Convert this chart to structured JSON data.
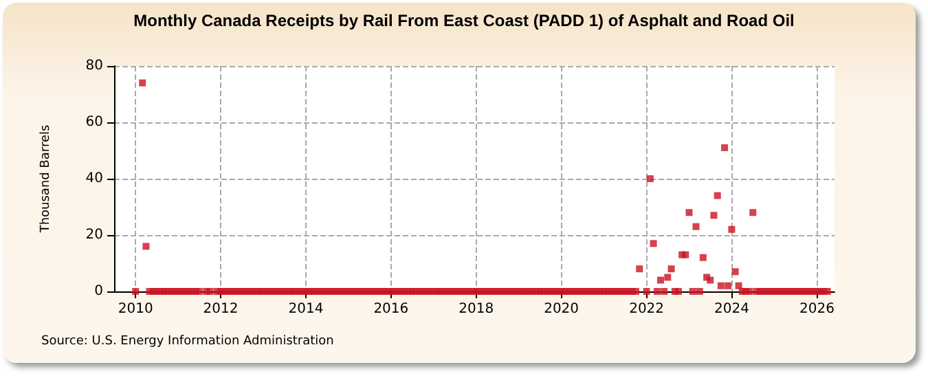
{
  "chart_data": {
    "type": "scatter",
    "title": "Monthly Canada Receipts by Rail From East Coast (PADD 1) of Asphalt and Road Oil",
    "ylabel": "Thousand Barrels",
    "annotations": [
      "Source: U.S. Energy Information Administration"
    ],
    "x": [
      "2010-01",
      "2010-03",
      "2010-04",
      "2010-05",
      "2010-06",
      "2010-07",
      "2010-08",
      "2010-09",
      "2010-10",
      "2010-11",
      "2010-12",
      "2011-01",
      "2011-02",
      "2011-03",
      "2011-04",
      "2011-05",
      "2011-06",
      "2011-07",
      "2011-09",
      "2011-10",
      "2011-12",
      "2012-01",
      "2012-02",
      "2012-03",
      "2012-04",
      "2012-05",
      "2012-06",
      "2012-07",
      "2012-08",
      "2012-09",
      "2012-10",
      "2012-11",
      "2012-12",
      "2013-01",
      "2013-02",
      "2013-03",
      "2013-04",
      "2013-05",
      "2013-06",
      "2013-07",
      "2013-08",
      "2013-09",
      "2013-10",
      "2013-11",
      "2013-12",
      "2014-01",
      "2014-02",
      "2014-03",
      "2014-04",
      "2014-05",
      "2014-06",
      "2014-07",
      "2014-08",
      "2014-09",
      "2014-10",
      "2014-11",
      "2014-12",
      "2015-01",
      "2015-02",
      "2015-03",
      "2015-04",
      "2015-05",
      "2015-06",
      "2015-07",
      "2015-08",
      "2015-09",
      "2015-10",
      "2015-11",
      "2015-12",
      "2016-01",
      "2016-02",
      "2016-03",
      "2016-04",
      "2016-05",
      "2016-06",
      "2016-07",
      "2016-08",
      "2016-09",
      "2016-10",
      "2016-11",
      "2016-12",
      "2017-01",
      "2017-02",
      "2017-03",
      "2017-04",
      "2017-05",
      "2017-06",
      "2017-07",
      "2017-08",
      "2017-09",
      "2017-10",
      "2017-11",
      "2017-12",
      "2018-01",
      "2018-02",
      "2018-03",
      "2018-04",
      "2018-05",
      "2018-06",
      "2018-07",
      "2018-08",
      "2018-09",
      "2018-10",
      "2018-11",
      "2018-12",
      "2019-01",
      "2019-02",
      "2019-03",
      "2019-04",
      "2019-05",
      "2019-06",
      "2019-07",
      "2019-08",
      "2019-09",
      "2019-10",
      "2019-11",
      "2019-12",
      "2020-01",
      "2020-02",
      "2020-03",
      "2020-04",
      "2020-05",
      "2020-06",
      "2020-07",
      "2020-08",
      "2020-09",
      "2020-10",
      "2020-11",
      "2020-12",
      "2021-01",
      "2021-02",
      "2021-03",
      "2021-04",
      "2021-05",
      "2021-06",
      "2021-07",
      "2021-08",
      "2021-09",
      "2021-10",
      "2021-11",
      "2022-01",
      "2022-02",
      "2022-03",
      "2022-04",
      "2022-05",
      "2022-06",
      "2022-07",
      "2022-08",
      "2022-09",
      "2022-10",
      "2022-11",
      "2022-12",
      "2023-01",
      "2023-02",
      "2023-03",
      "2023-04",
      "2023-05",
      "2023-06",
      "2023-07",
      "2023-08",
      "2023-09",
      "2023-10",
      "2023-11",
      "2023-12",
      "2024-01",
      "2024-02",
      "2024-03",
      "2024-04",
      "2024-05",
      "2024-06",
      "2024-07",
      "2024-08",
      "2024-09",
      "2024-10",
      "2024-11",
      "2024-12",
      "2025-01",
      "2025-02",
      "2025-03",
      "2025-04",
      "2025-05",
      "2025-06",
      "2025-07",
      "2025-08",
      "2025-09",
      "2025-10",
      "2025-11",
      "2025-12",
      "2026-01",
      "2026-02",
      "2026-03",
      "2026-04"
    ],
    "series": [
      {
        "color": "#cc1122",
        "values": [
          0,
          74,
          16,
          0,
          0,
          0,
          0,
          0,
          0,
          0,
          0,
          0,
          0,
          0,
          0,
          0,
          0,
          0,
          0,
          0,
          0,
          0,
          0,
          0,
          0,
          0,
          0,
          0,
          0,
          0,
          0,
          0,
          0,
          0,
          0,
          0,
          0,
          0,
          0,
          0,
          0,
          0,
          0,
          0,
          0,
          0,
          0,
          0,
          0,
          0,
          0,
          0,
          0,
          0,
          0,
          0,
          0,
          0,
          0,
          0,
          0,
          0,
          0,
          0,
          0,
          0,
          0,
          0,
          0,
          0,
          0,
          0,
          0,
          0,
          0,
          0,
          0,
          0,
          0,
          0,
          0,
          0,
          0,
          0,
          0,
          0,
          0,
          0,
          0,
          0,
          0,
          0,
          0,
          0,
          0,
          0,
          0,
          0,
          0,
          0,
          0,
          0,
          0,
          0,
          0,
          0,
          0,
          0,
          0,
          0,
          0,
          0,
          0,
          0,
          0,
          0,
          0,
          0,
          0,
          0,
          0,
          0,
          0,
          0,
          0,
          0,
          0,
          0,
          0,
          0,
          0,
          0,
          0,
          0,
          0,
          0,
          0,
          0,
          0,
          8,
          0,
          40,
          17,
          0,
          4,
          0,
          5,
          8,
          0,
          0,
          13,
          13,
          28,
          0,
          23,
          0,
          12,
          5,
          4,
          27,
          34,
          2,
          51,
          2,
          22,
          7,
          2,
          0,
          0,
          0,
          28,
          0,
          0,
          0,
          0,
          0,
          0,
          0,
          0,
          0,
          0,
          0,
          0,
          0,
          0,
          0,
          0,
          0,
          0,
          0,
          0,
          0
        ]
      }
    ],
    "xlim": [
      "2009-07",
      "2026-06"
    ],
    "xticks": [
      "2010",
      "2012",
      "2014",
      "2016",
      "2018",
      "2020",
      "2022",
      "2024",
      "2026"
    ],
    "ylim": [
      0,
      80
    ],
    "yticks": [
      0,
      20,
      40,
      60,
      80
    ],
    "grid": true,
    "marker": "square"
  }
}
